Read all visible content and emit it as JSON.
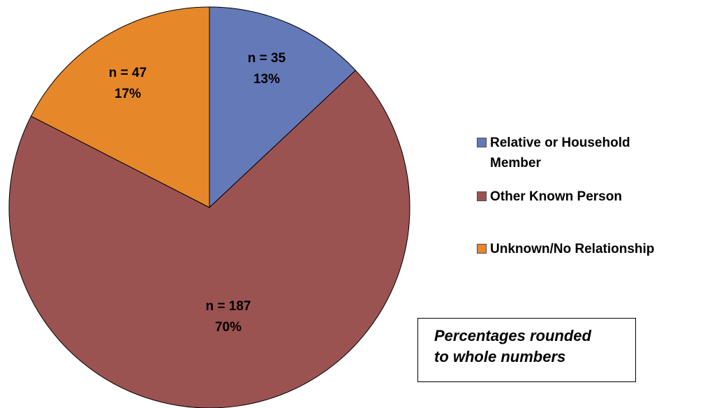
{
  "chart_data": {
    "type": "pie",
    "title": "",
    "categories": [
      "Relative or Household Member",
      "Other Known Person",
      "Unknown/No Relationship"
    ],
    "counts": [
      35,
      187,
      47
    ],
    "values": [
      13,
      70,
      17
    ],
    "count_labels": [
      "n = 35",
      "n = 187",
      "n = 47"
    ],
    "percent_labels": [
      "13%",
      "70%",
      "17%"
    ],
    "colors": [
      "#6479b8",
      "#9b5352",
      "#e6882a"
    ],
    "legend_position": "right",
    "note": "Percentages rounded to whole numbers",
    "note_lines": [
      "Percentages rounded",
      "to whole numbers"
    ]
  }
}
